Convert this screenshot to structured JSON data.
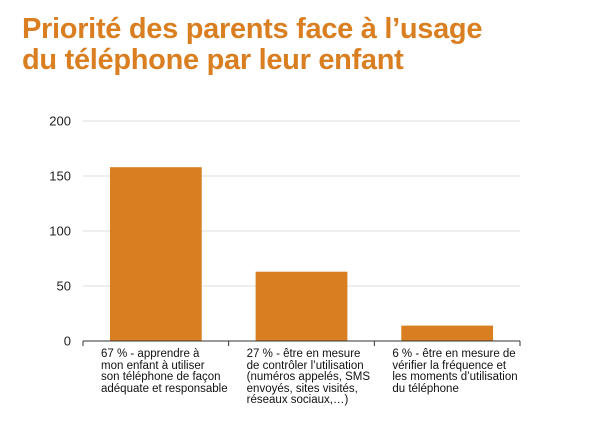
{
  "title": {
    "line1": "Priorité des parents face à l’usage",
    "line2": "du téléphone par leur enfant"
  },
  "colors": {
    "bar": "#d97f21",
    "title": "#d97f21",
    "grid": "#dcdcdc",
    "axis": "#333333"
  },
  "chart_data": {
    "type": "bar",
    "title": "Priorité des parents face à l’usage du téléphone par leur enfant",
    "categories": [
      "67 % - apprendre à mon enfant à utiliser son téléphone de façon adéquate et responsable",
      "27 % - être en mesure de contrôler l’utilisation (numéros appelés, SMS envoyés, sites visités, réseaux sociaux,…)",
      "6 % - être en mesure de vérifier la fréquence et les moments d’utilisation du téléphone"
    ],
    "category_lines": [
      [
        "67 % - apprendre à",
        "mon enfant à utiliser",
        "son téléphone de façon",
        "adéquate et responsable"
      ],
      [
        "27 % - être en mesure",
        "de contrôler l’utilisation",
        "(numéros appelés, SMS",
        "envoyés, sites visités,",
        "réseaux sociaux,…)"
      ],
      [
        "6 % - être en mesure de",
        "vérifier la fréquence et",
        "les moments d’utilisation",
        "du téléphone"
      ]
    ],
    "values": [
      158,
      63,
      14
    ],
    "yticks": [
      "0",
      "50",
      "100",
      "150",
      "200"
    ],
    "ylim": [
      0,
      200
    ],
    "grid": true,
    "xlabel": "",
    "ylabel": ""
  }
}
